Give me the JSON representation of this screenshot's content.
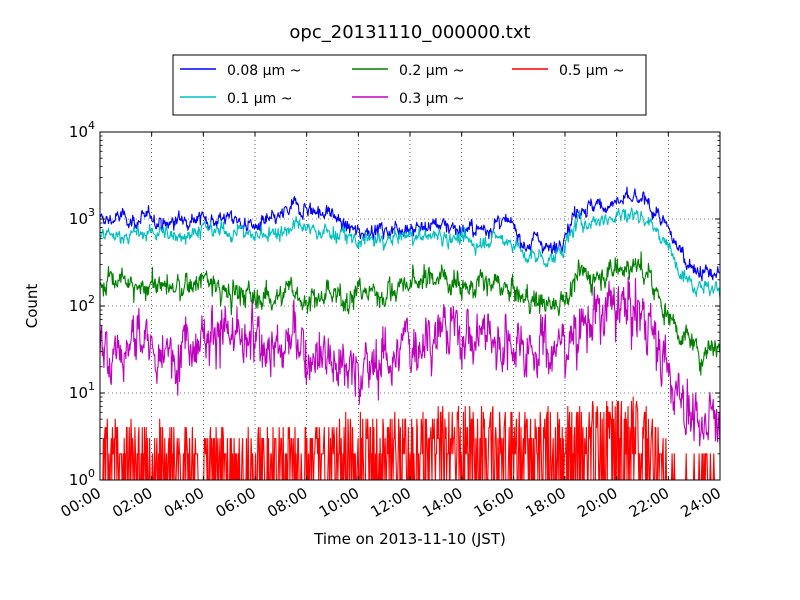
{
  "chart_data": {
    "type": "line",
    "title": "opc_20131110_000000.txt",
    "xlabel": "Time on 2013-11-10 (JST)",
    "ylabel": "Count",
    "x_unit": "hours",
    "xlim": [
      0,
      24
    ],
    "ylim": [
      1,
      10000
    ],
    "y_scale": "log",
    "grid": true,
    "legend_position": "top-center",
    "x_ticks": [
      {
        "value": 0,
        "label": "00:00"
      },
      {
        "value": 2,
        "label": "02:00"
      },
      {
        "value": 4,
        "label": "04:00"
      },
      {
        "value": 6,
        "label": "06:00"
      },
      {
        "value": 8,
        "label": "08:00"
      },
      {
        "value": 10,
        "label": "10:00"
      },
      {
        "value": 12,
        "label": "12:00"
      },
      {
        "value": 14,
        "label": "14:00"
      },
      {
        "value": 16,
        "label": "16:00"
      },
      {
        "value": 18,
        "label": "18:00"
      },
      {
        "value": 20,
        "label": "20:00"
      },
      {
        "value": 22,
        "label": "22:00"
      },
      {
        "value": 24,
        "label": "24:00"
      }
    ],
    "y_ticks": [
      {
        "value": 1,
        "base": "10",
        "exp": "0"
      },
      {
        "value": 10,
        "base": "10",
        "exp": "1"
      },
      {
        "value": 100,
        "base": "10",
        "exp": "2"
      },
      {
        "value": 1000,
        "base": "10",
        "exp": "3"
      },
      {
        "value": 10000,
        "base": "10",
        "exp": "4"
      }
    ],
    "series": [
      {
        "name": "0.08 μm ~",
        "color": "#0000ff",
        "noise": 0.06,
        "points": [
          [
            0,
            950
          ],
          [
            0.5,
            1000
          ],
          [
            1,
            1050
          ],
          [
            1.5,
            900
          ],
          [
            2,
            1100
          ],
          [
            2.5,
            850
          ],
          [
            3,
            950
          ],
          [
            3.5,
            1100
          ],
          [
            4,
            1000
          ],
          [
            4.5,
            1000
          ],
          [
            5,
            1050
          ],
          [
            5.5,
            900
          ],
          [
            6,
            800
          ],
          [
            6.5,
            900
          ],
          [
            7,
            1050
          ],
          [
            7.5,
            1400
          ],
          [
            8,
            1350
          ],
          [
            8.5,
            1200
          ],
          [
            9,
            1150
          ],
          [
            9.5,
            800
          ],
          [
            10,
            700
          ],
          [
            10.5,
            780
          ],
          [
            11,
            720
          ],
          [
            11.5,
            800
          ],
          [
            12,
            820
          ],
          [
            12.5,
            780
          ],
          [
            13,
            900
          ],
          [
            13.5,
            850
          ],
          [
            14,
            760
          ],
          [
            14.5,
            720
          ],
          [
            15,
            800
          ],
          [
            15.5,
            900
          ],
          [
            16,
            820
          ],
          [
            16.5,
            500
          ],
          [
            17,
            600
          ],
          [
            17.5,
            420
          ],
          [
            18,
            700
          ],
          [
            18.5,
            1350
          ],
          [
            19,
            1350
          ],
          [
            19.5,
            1450
          ],
          [
            20,
            1550
          ],
          [
            20.5,
            1650
          ],
          [
            21,
            1600
          ],
          [
            21.2,
            1500
          ],
          [
            21.6,
            1100
          ],
          [
            22,
            700
          ],
          [
            22.5,
            420
          ],
          [
            23,
            270
          ],
          [
            23.3,
            250
          ],
          [
            23.6,
            230
          ],
          [
            24,
            230
          ]
        ]
      },
      {
        "name": "0.1 μm ~",
        "color": "#00bfbf",
        "noise": 0.06,
        "points": [
          [
            0,
            650
          ],
          [
            0.5,
            620
          ],
          [
            1,
            680
          ],
          [
            1.5,
            640
          ],
          [
            2,
            720
          ],
          [
            2.5,
            660
          ],
          [
            3,
            650
          ],
          [
            3.5,
            700
          ],
          [
            4,
            760
          ],
          [
            4.5,
            720
          ],
          [
            5,
            730
          ],
          [
            5.5,
            720
          ],
          [
            6,
            620
          ],
          [
            6.5,
            700
          ],
          [
            7,
            720
          ],
          [
            7.5,
            820
          ],
          [
            8,
            760
          ],
          [
            8.5,
            720
          ],
          [
            9,
            700
          ],
          [
            9.5,
            620
          ],
          [
            10,
            550
          ],
          [
            10.5,
            570
          ],
          [
            11,
            560
          ],
          [
            11.5,
            600
          ],
          [
            12,
            640
          ],
          [
            12.5,
            620
          ],
          [
            13,
            650
          ],
          [
            13.5,
            640
          ],
          [
            14,
            560
          ],
          [
            14.5,
            520
          ],
          [
            15,
            580
          ],
          [
            15.5,
            600
          ],
          [
            16,
            550
          ],
          [
            16.5,
            350
          ],
          [
            17,
            380
          ],
          [
            17.5,
            330
          ],
          [
            18,
            500
          ],
          [
            18.5,
            900
          ],
          [
            19,
            950
          ],
          [
            19.5,
            1000
          ],
          [
            20,
            1100
          ],
          [
            20.5,
            1150
          ],
          [
            21,
            1100
          ],
          [
            21.2,
            1000
          ],
          [
            21.6,
            700
          ],
          [
            22,
            450
          ],
          [
            22.5,
            280
          ],
          [
            23,
            170
          ],
          [
            23.3,
            180
          ],
          [
            23.6,
            160
          ],
          [
            24,
            150
          ]
        ]
      },
      {
        "name": "0.2 μm ~",
        "color": "#008000",
        "noise": 0.1,
        "points": [
          [
            0,
            170
          ],
          [
            0.5,
            200
          ],
          [
            1,
            180
          ],
          [
            1.5,
            140
          ],
          [
            2,
            200
          ],
          [
            2.5,
            160
          ],
          [
            3,
            150
          ],
          [
            3.5,
            180
          ],
          [
            4,
            210
          ],
          [
            4.5,
            160
          ],
          [
            5,
            130
          ],
          [
            5.5,
            150
          ],
          [
            6,
            110
          ],
          [
            6.5,
            140
          ],
          [
            7,
            130
          ],
          [
            7.5,
            150
          ],
          [
            8,
            120
          ],
          [
            8.5,
            120
          ],
          [
            9,
            125
          ],
          [
            9.5,
            130
          ],
          [
            10,
            140
          ],
          [
            10.5,
            150
          ],
          [
            11,
            140
          ],
          [
            11.5,
            160
          ],
          [
            12,
            180
          ],
          [
            12.5,
            200
          ],
          [
            13,
            220
          ],
          [
            13.5,
            215
          ],
          [
            14,
            180
          ],
          [
            14.5,
            160
          ],
          [
            15,
            180
          ],
          [
            15.5,
            160
          ],
          [
            16,
            140
          ],
          [
            16.5,
            120
          ],
          [
            17,
            115
          ],
          [
            17.5,
            100
          ],
          [
            18,
            130
          ],
          [
            18.5,
            220
          ],
          [
            19,
            230
          ],
          [
            19.5,
            240
          ],
          [
            20,
            280
          ],
          [
            20.5,
            290
          ],
          [
            21,
            260
          ],
          [
            21.2,
            220
          ],
          [
            21.6,
            130
          ],
          [
            22,
            80
          ],
          [
            22.5,
            50
          ],
          [
            23,
            32
          ],
          [
            23.3,
            30
          ],
          [
            23.6,
            35
          ],
          [
            24,
            35
          ]
        ]
      },
      {
        "name": "0.3 μm ~",
        "color": "#bf00bf",
        "noise": 0.22,
        "points": [
          [
            0,
            35
          ],
          [
            0.5,
            40
          ],
          [
            1,
            30
          ],
          [
            1.5,
            50
          ],
          [
            2,
            30
          ],
          [
            2.5,
            20
          ],
          [
            3,
            40
          ],
          [
            3.5,
            45
          ],
          [
            4,
            50
          ],
          [
            4.5,
            60
          ],
          [
            5,
            40
          ],
          [
            5.5,
            35
          ],
          [
            6,
            35
          ],
          [
            6.5,
            40
          ],
          [
            7,
            30
          ],
          [
            7.5,
            40
          ],
          [
            8,
            30
          ],
          [
            8.5,
            35
          ],
          [
            9,
            25
          ],
          [
            9.5,
            20
          ],
          [
            10,
            18
          ],
          [
            10.5,
            20
          ],
          [
            11,
            25
          ],
          [
            11.5,
            30
          ],
          [
            12,
            35
          ],
          [
            12.5,
            45
          ],
          [
            13,
            55
          ],
          [
            13.5,
            55
          ],
          [
            14,
            50
          ],
          [
            14.5,
            45
          ],
          [
            15,
            50
          ],
          [
            15.5,
            40
          ],
          [
            16,
            40
          ],
          [
            16.5,
            35
          ],
          [
            17,
            40
          ],
          [
            17.5,
            30
          ],
          [
            18,
            35
          ],
          [
            18.5,
            60
          ],
          [
            19,
            70
          ],
          [
            19.5,
            80
          ],
          [
            20,
            90
          ],
          [
            20.5,
            95
          ],
          [
            21,
            85
          ],
          [
            21.2,
            70
          ],
          [
            21.6,
            35
          ],
          [
            22,
            15
          ],
          [
            22.5,
            10
          ],
          [
            23,
            5
          ],
          [
            23.3,
            3
          ],
          [
            23.6,
            7
          ],
          [
            24,
            5
          ]
        ]
      },
      {
        "name": "0.5 μm ~",
        "color": "#ff0000",
        "noise": 0,
        "points": [
          [
            0,
            3
          ],
          [
            1,
            2.5
          ],
          [
            2,
            2
          ],
          [
            3,
            2.5
          ],
          [
            4,
            2
          ],
          [
            5,
            2
          ],
          [
            6,
            2
          ],
          [
            7,
            2.5
          ],
          [
            8,
            2.5
          ],
          [
            9,
            2.5
          ],
          [
            10,
            3
          ],
          [
            11,
            3
          ],
          [
            12,
            3
          ],
          [
            13,
            3.5
          ],
          [
            14,
            3.5
          ],
          [
            15,
            3.5
          ],
          [
            16,
            3.5
          ],
          [
            17,
            3
          ],
          [
            18,
            4
          ],
          [
            19,
            4
          ],
          [
            20,
            4.5
          ],
          [
            21,
            4
          ],
          [
            21.5,
            3
          ],
          [
            22,
            1.5
          ],
          [
            23,
            1.2
          ],
          [
            24,
            1.2
          ]
        ]
      }
    ]
  }
}
